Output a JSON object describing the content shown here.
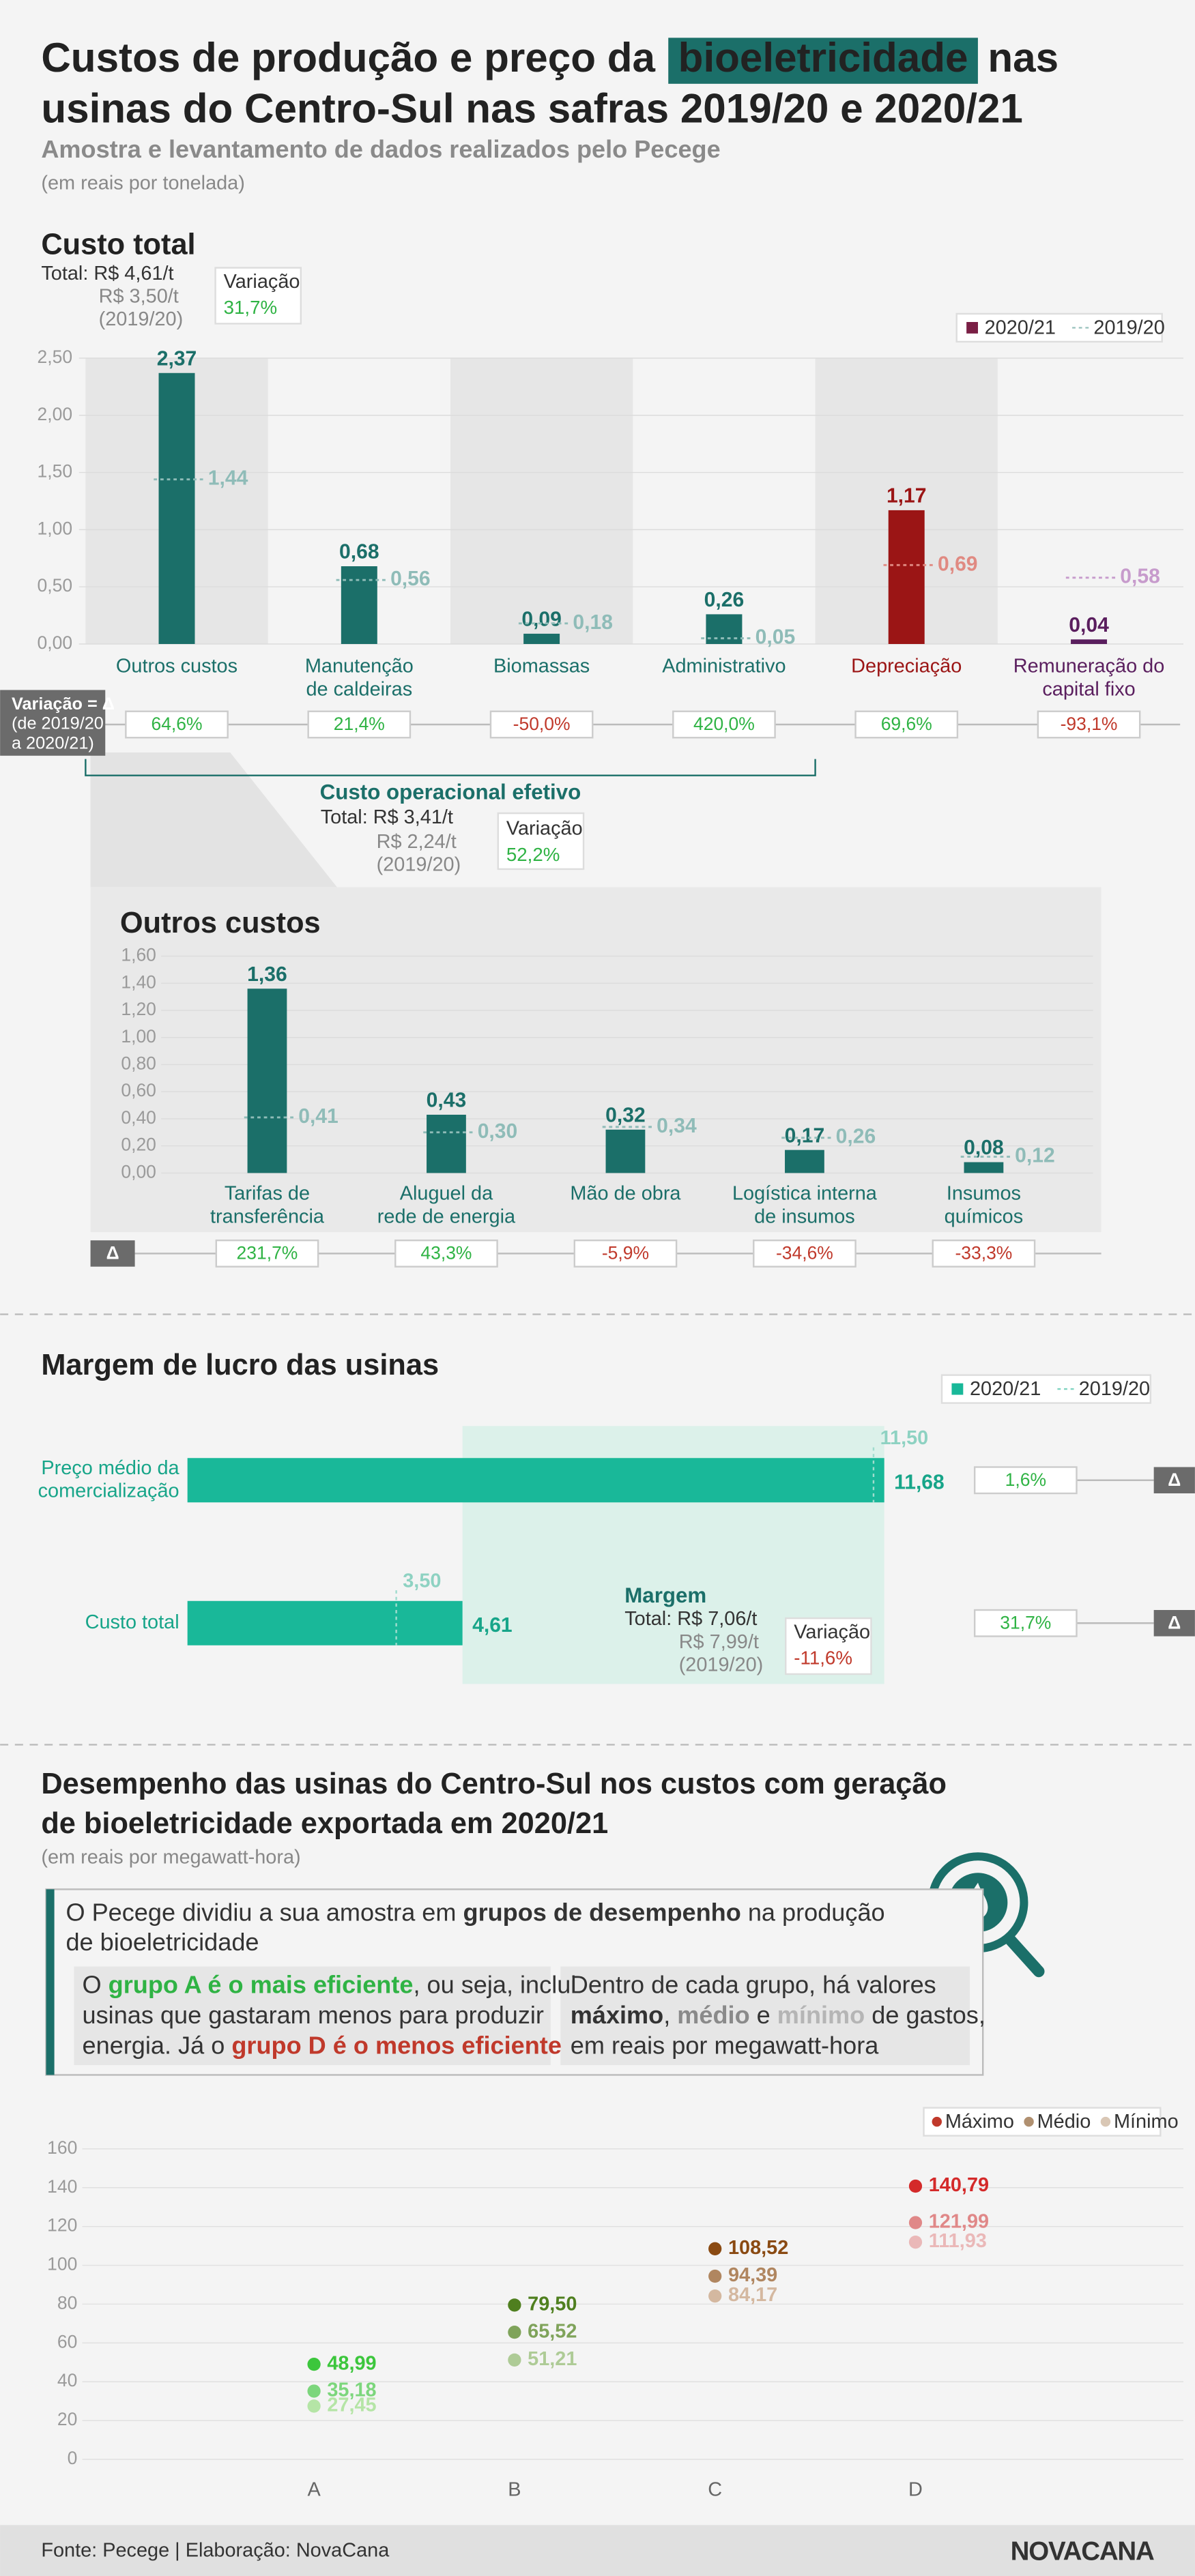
{
  "header": {
    "title_start": "Custos de produção e preço da",
    "title_highlight": "bioeletricidade",
    "title_end": "nas",
    "title_line2": "usinas do Centro-Sul nas safras 2019/20 e 2020/21",
    "subtitle": "Amostra e levantamento de dados realizados pelo Pecege",
    "unit": "(em reais por tonelada)"
  },
  "chart_data": [
    {
      "type": "bar",
      "title": "Custo total",
      "summary": {
        "total": "Total: R$ 4,61/t",
        "previous": "R$ 3,50/t",
        "previous_period": "(2019/20)",
        "variation_title": "Variação",
        "variation": "31,7%"
      },
      "categories": [
        "Outros custos",
        "Manutenção de caldeiras",
        "Biomassas",
        "Administrativo",
        "Depreciação",
        "Remuneração do capital fixo"
      ],
      "series": [
        {
          "name": "2020/21",
          "color": "#7a1f45",
          "colors": [
            "#1b6f69",
            "#1b6f69",
            "#1b6f69",
            "#1b6f69",
            "#9b1515",
            "#5a1e5e"
          ],
          "values": [
            2.37,
            0.68,
            0.09,
            0.26,
            1.17,
            0.04
          ],
          "value_labels": [
            "2,37",
            "0,68",
            "0,09",
            "0,26",
            "1,17",
            "0,04"
          ]
        },
        {
          "name": "2019/20",
          "color": "#9cc3bf",
          "colors": [
            "#8fbcb8",
            "#8fbcb8",
            "#8fbcb8",
            "#8fbcb8",
            "#e08a82",
            "#c79bcc"
          ],
          "values": [
            1.44,
            0.56,
            0.18,
            0.05,
            0.69,
            0.58
          ],
          "value_labels": [
            "1,44",
            "0,56",
            "0,18",
            "0,05",
            "0,69",
            "0,58"
          ]
        }
      ],
      "ylim": [
        0,
        2.5
      ],
      "yticks": [
        {
          "value": 0,
          "label": "0,00"
        },
        {
          "value": 0.5,
          "label": "0,50"
        },
        {
          "value": 1,
          "label": "1,00"
        },
        {
          "value": 1.5,
          "label": "1,50"
        },
        {
          "value": 2,
          "label": "2,00"
        },
        {
          "value": 2.5,
          "label": "2,50"
        }
      ],
      "grid": true,
      "legend": "top-right",
      "variations": [
        64.6,
        21.4,
        -50.0,
        420.0,
        69.6,
        -93.1
      ],
      "variation_labels": [
        "64,6%",
        "21,4%",
        "-50,0%",
        "420,0%",
        "69,6%",
        "-93,1%"
      ],
      "variation_key": [
        "Variação = Δ",
        "(de 2019/20",
        "a 2020/21)"
      ],
      "bracket": {
        "title": "Custo operacional efetivo",
        "total": "Total: R$ 3,41/t",
        "previous": "R$ 2,24/t",
        "previous_period": "(2019/20)",
        "variation_title": "Variação",
        "variation": "52,2%"
      }
    },
    {
      "type": "bar",
      "title": "Outros custos",
      "categories": [
        "Tarifas de transferência",
        "Aluguel da rede de energia",
        "Mão de obra",
        "Logística interna de insumos",
        "Insumos químicos"
      ],
      "series": [
        {
          "name": "2020/21",
          "color": "#1b6f69",
          "colors": [
            "#1b6f69",
            "#1b6f69",
            "#1b6f69",
            "#1b6f69",
            "#1b6f69"
          ],
          "values": [
            1.36,
            0.43,
            0.32,
            0.17,
            0.08
          ],
          "value_labels": [
            "1,36",
            "0,43",
            "0,32",
            "0,17",
            "0,08"
          ]
        },
        {
          "name": "2019/20",
          "color": "#8fbcb8",
          "colors": [
            "#8fbcb8",
            "#8fbcb8",
            "#8fbcb8",
            "#8fbcb8",
            "#8fbcb8"
          ],
          "values": [
            0.41,
            0.3,
            0.34,
            0.26,
            0.12
          ],
          "value_labels": [
            "0,41",
            "0,30",
            "0,34",
            "0,26",
            "0,12"
          ]
        }
      ],
      "ylim": [
        0,
        1.6
      ],
      "yticks": [
        {
          "value": 0,
          "label": "0,00"
        },
        {
          "value": 0.2,
          "label": "0,20"
        },
        {
          "value": 0.4,
          "label": "0,40"
        },
        {
          "value": 0.6,
          "label": "0,60"
        },
        {
          "value": 0.8,
          "label": "0,80"
        },
        {
          "value": 1,
          "label": "1,00"
        },
        {
          "value": 1.2,
          "label": "1,20"
        },
        {
          "value": 1.4,
          "label": "1,40"
        },
        {
          "value": 1.6,
          "label": "1,60"
        }
      ],
      "grid": true,
      "variations": [
        231.7,
        43.3,
        -5.9,
        -34.6,
        -33.3
      ],
      "variation_labels": [
        "231,7%",
        "43,3%",
        "-5,9%",
        "-34,6%",
        "-33,3%"
      ],
      "variation_key": [
        "Δ"
      ]
    },
    {
      "type": "barh",
      "title": "Margem de lucro das usinas",
      "categories": [
        "Preço médio da comercialização",
        "Custo total"
      ],
      "series": [
        {
          "name": "2020/21",
          "color": "#19b899",
          "values": [
            11.68,
            4.61
          ],
          "value_labels": [
            "11,68",
            "4,61"
          ]
        },
        {
          "name": "2019/20",
          "color": "#7fd3c0",
          "values": [
            11.5,
            3.5
          ],
          "value_labels": [
            "11,50",
            "3,50"
          ]
        }
      ],
      "xlim": [
        0,
        12
      ],
      "legend": "top-right",
      "variations": [
        1.6,
        31.7
      ],
      "variation_labels": [
        "1,6%",
        "31,7%"
      ],
      "variation_key": [
        "Δ"
      ],
      "margin": {
        "title": "Margem",
        "total": "Total: R$ 7,06/t",
        "previous": "R$ 7,99/t",
        "previous_period": "(2019/20)",
        "variation_title": "Variação",
        "variation": "-11,6%"
      }
    },
    {
      "type": "scatter",
      "title_lines": [
        "Desempenho das usinas do Centro-Sul nos custos com geração",
        "de bioeletricidade exportada em 2020/21"
      ],
      "subtitle": "(em reais por megawatt-hora)",
      "intro": {
        "lines": [
          [
            {
              "text": "O Pecege dividiu a sua amostra em "
            },
            {
              "text": "grupos de desempenho",
              "bold": true
            },
            {
              "text": " na produção"
            }
          ],
          [
            {
              "text": "de bioeletricidade"
            }
          ]
        ],
        "left": [
          [
            {
              "text": "O "
            },
            {
              "text": "grupo A é o mais eficiente",
              "bold": true,
              "color": "#2fb344"
            },
            {
              "text": ", ou seja, inclui"
            }
          ],
          [
            {
              "text": "usinas que gastaram menos para produzir"
            }
          ],
          [
            {
              "text": "energia. Já o "
            },
            {
              "text": "grupo D é o menos eficiente",
              "bold": true,
              "color": "#c0392b"
            }
          ]
        ],
        "right": [
          [
            {
              "text": "Dentro de cada grupo, há valores"
            }
          ],
          [
            {
              "text": "máximo",
              "bold": true
            },
            {
              "text": ", "
            },
            {
              "text": "médio",
              "bold": true,
              "color": "#8a8a8a"
            },
            {
              "text": " e "
            },
            {
              "text": "mínimo",
              "bold": true,
              "color": "#b5b5b5"
            },
            {
              "text": " de gastos,"
            }
          ],
          [
            {
              "text": "em reais por megawatt-hora"
            }
          ]
        ]
      },
      "categories": [
        "A",
        "B",
        "C",
        "D"
      ],
      "series": [
        {
          "name": "Máximo",
          "color": "#c0392b",
          "point_colors": [
            "#3cc63c",
            "#4f7f1f",
            "#8a4a12",
            "#d42a2a"
          ],
          "values": [
            48.99,
            79.5,
            108.52,
            140.79
          ],
          "value_labels": [
            "48,99",
            "79,50",
            "108,52",
            "140,79"
          ]
        },
        {
          "name": "Médio",
          "color": "#b09070",
          "point_colors": [
            "#7cd67c",
            "#7fa35a",
            "#b08660",
            "#e08888"
          ],
          "values": [
            35.18,
            65.52,
            94.39,
            121.99
          ],
          "value_labels": [
            "35,18",
            "65,52",
            "94,39",
            "121,99"
          ]
        },
        {
          "name": "Mínimo",
          "color": "#d9c7b5",
          "point_colors": [
            "#b5e5a6",
            "#aecb96",
            "#d4b8a0",
            "#eab8b8"
          ],
          "values": [
            27.45,
            51.21,
            84.17,
            111.93
          ],
          "value_labels": [
            "27,45",
            "51,21",
            "84,17",
            "111,93"
          ]
        }
      ],
      "ylim": [
        0,
        160
      ],
      "yticks": [
        0,
        20,
        40,
        60,
        80,
        100,
        120,
        140,
        160
      ],
      "grid": true,
      "legend": "top-right"
    }
  ],
  "footer": {
    "source": "Fonte: Pecege | Elaboração: NovaCana",
    "logo": "NOVACANA"
  }
}
